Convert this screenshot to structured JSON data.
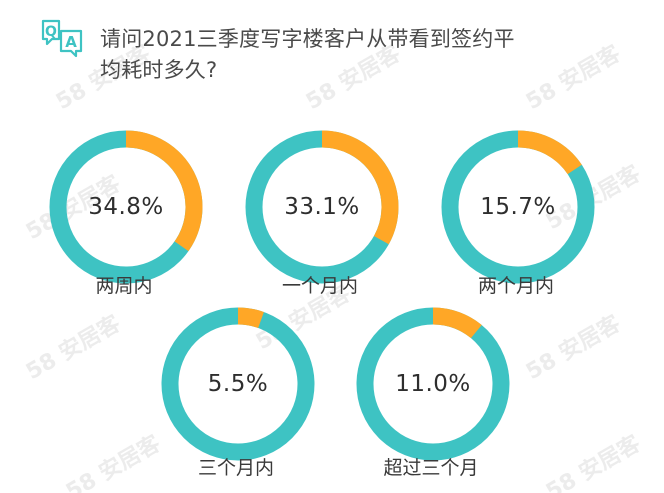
{
  "title_line1": "请问2021三季度写字楼客户从带看到签约平",
  "title_line2": "均耗时多久?",
  "qa_icon": {
    "q": "Q",
    "a": "A"
  },
  "watermark": "58 安居客",
  "colors": {
    "base": "#3ec3c3",
    "highlight": "#ffa726"
  },
  "chart_data": {
    "type": "pie",
    "title": "请问2021三季度写字楼客户从带看到签约平均耗时多久?",
    "categories": [
      "两周内",
      "一个月内",
      "两个月内",
      "三个月内",
      "超过三个月"
    ],
    "values": [
      34.8,
      33.1,
      15.7,
      5.5,
      11.0
    ],
    "labels": [
      "34.8%",
      "33.1%",
      "15.7%",
      "5.5%",
      "11.0%"
    ]
  }
}
